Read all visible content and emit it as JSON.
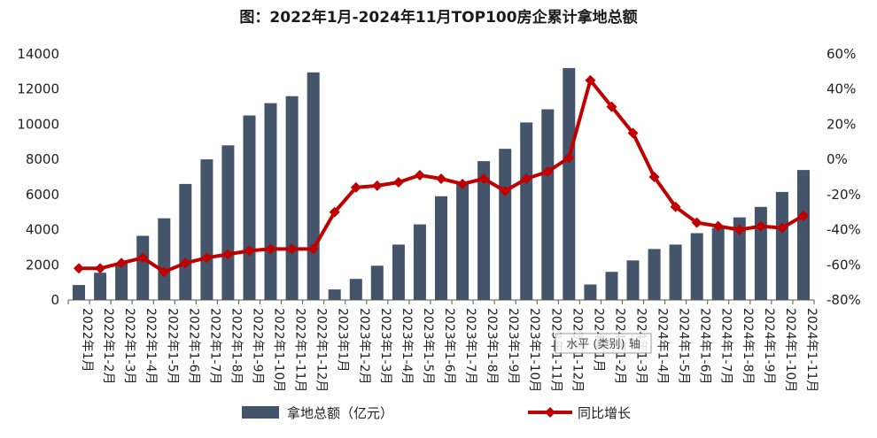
{
  "chart_data": {
    "type": "bar",
    "title": "图：2022年1月-2024年11月TOP100房企累计拿地总额",
    "categories": [
      "2022年1月",
      "2022年1-2月",
      "2022年1-3月",
      "2022年1-4月",
      "2022年1-5月",
      "2022年1-6月",
      "2022年1-7月",
      "2022年1-8月",
      "2022年1-9月",
      "2022年1-10月",
      "2022年1-11月",
      "2022年1-12月",
      "2023年1月",
      "2023年1-2月",
      "2023年1-3月",
      "2023年1-4月",
      "2023年1-5月",
      "2023年1-6月",
      "2023年1-7月",
      "2023年1-8月",
      "2023年1-9月",
      "2023年1-10月",
      "2023年1-11月",
      "2023年1-12月",
      "2024年1月",
      "2024年1-2月",
      "2024年1-3月",
      "2024年1-4月",
      "2024年1-5月",
      "2024年1-6月",
      "2024年1-7月",
      "2024年1-8月",
      "2024年1-9月",
      "2024年1-10月",
      "2024年1-11月"
    ],
    "series": [
      {
        "name": "拿地总额（亿元）",
        "type": "bar",
        "axis": "left",
        "color": "#44546a",
        "values": [
          850,
          1550,
          2100,
          3650,
          4650,
          6600,
          8000,
          8800,
          10500,
          11200,
          11600,
          12950,
          600,
          1200,
          1950,
          3150,
          4300,
          5900,
          6700,
          7900,
          8600,
          10100,
          10850,
          13200,
          880,
          1600,
          2250,
          2900,
          3150,
          3800,
          4100,
          4700,
          5300,
          6150,
          7400
        ]
      },
      {
        "name": "同比增长",
        "type": "line",
        "axis": "right",
        "color": "#c00000",
        "values": [
          -62,
          -62,
          -59,
          -56,
          -64,
          -59,
          -56,
          -54,
          -52,
          -51,
          -51,
          -51,
          -30,
          -16,
          -15,
          -13,
          -9,
          -11,
          -14,
          -11,
          -18,
          -11,
          -7,
          1,
          45,
          30,
          15,
          -10,
          -27,
          -36,
          -38,
          -40,
          -38,
          -39,
          -32
        ]
      }
    ],
    "ylim_left": [
      0,
      14000
    ],
    "yticks_left": [
      "0",
      "2000",
      "4000",
      "6000",
      "8000",
      "10000",
      "12000",
      "14000"
    ],
    "ylim_right": [
      -80,
      60
    ],
    "yticks_right": [
      "-80%",
      "-60%",
      "-40%",
      "-20%",
      "0%",
      "20%",
      "40%",
      "60%"
    ],
    "legend_position": "bottom",
    "tooltip": "水平 (类别) 轴"
  }
}
